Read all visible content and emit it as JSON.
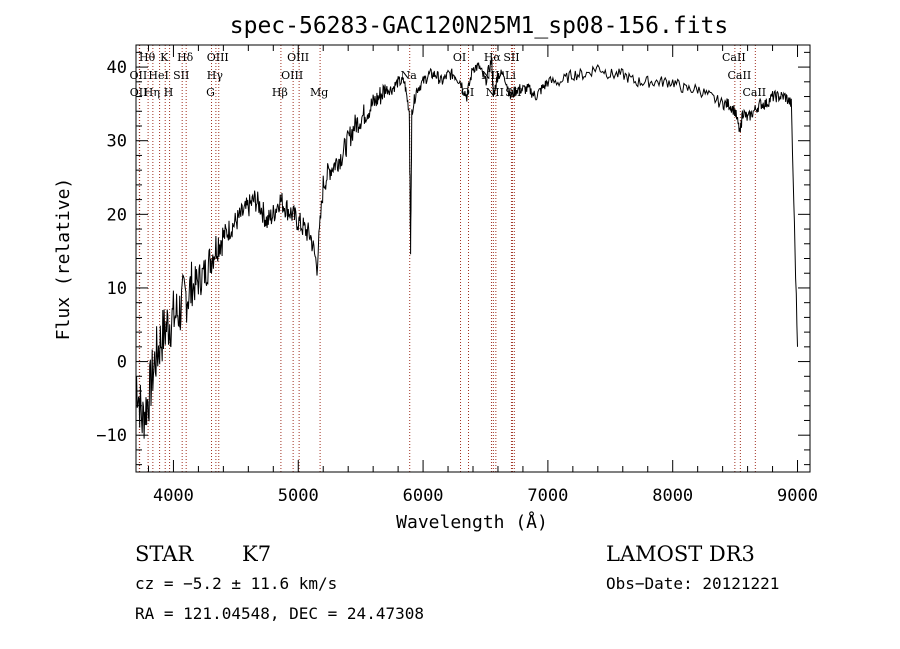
{
  "chart_data": {
    "type": "line",
    "title": "spec-56283-GAC120N25M1_sp08-156.fits",
    "xlabel": "Wavelength (Å)",
    "ylabel": "Flux (relative)",
    "xlim": [
      3700,
      9100
    ],
    "ylim": [
      -15,
      43
    ],
    "xticks": [
      4000,
      5000,
      6000,
      7000,
      8000,
      9000
    ],
    "yticks": [
      -10,
      0,
      10,
      20,
      30,
      40
    ],
    "series": [
      {
        "name": "flux",
        "x": [
          3700,
          3750,
          3800,
          3850,
          3900,
          3950,
          4000,
          4050,
          4100,
          4150,
          4200,
          4250,
          4300,
          4350,
          4400,
          4450,
          4500,
          4550,
          4600,
          4650,
          4700,
          4750,
          4800,
          4850,
          4900,
          4950,
          5000,
          5050,
          5100,
          5150,
          5200,
          5250,
          5300,
          5350,
          5400,
          5450,
          5500,
          5550,
          5600,
          5650,
          5700,
          5750,
          5800,
          5850,
          5890,
          5900,
          5910,
          5950,
          6000,
          6050,
          6100,
          6150,
          6200,
          6250,
          6300,
          6350,
          6400,
          6450,
          6500,
          6550,
          6563,
          6600,
          6650,
          6700,
          6750,
          6800,
          6850,
          6900,
          6950,
          7000,
          7100,
          7200,
          7300,
          7400,
          7500,
          7600,
          7700,
          7800,
          7900,
          8000,
          8100,
          8200,
          8300,
          8400,
          8450,
          8500,
          8540,
          8560,
          8600,
          8650,
          8700,
          8750,
          8800,
          8850,
          8900,
          8950,
          9000
        ],
        "y": [
          -2,
          -8,
          -5,
          0,
          3,
          5,
          6,
          7,
          9,
          10,
          11,
          12,
          14,
          16,
          17,
          18,
          19,
          20,
          21,
          22,
          21,
          19,
          20,
          22,
          21,
          20,
          19,
          18,
          17,
          13,
          24,
          26,
          27,
          28,
          30,
          32,
          33,
          34,
          35,
          36,
          37,
          37,
          38,
          38,
          34,
          15,
          34,
          37,
          38,
          39,
          39,
          38,
          39,
          39,
          38,
          36,
          40,
          40,
          38,
          41,
          36,
          39,
          39,
          36,
          37,
          37,
          37,
          36,
          37,
          38,
          38,
          39,
          39,
          40,
          39,
          39,
          38,
          38,
          38,
          38,
          37,
          37,
          36,
          35,
          35,
          34,
          31,
          34,
          33,
          34,
          35,
          35,
          36,
          36,
          36,
          35,
          2
        ]
      }
    ],
    "lines": [
      {
        "label": "Hθ",
        "wave": 3797,
        "row": 1
      },
      {
        "label": "OII",
        "wave": 3727,
        "row": 2
      },
      {
        "label": "OII",
        "wave": 3729,
        "row": 3
      },
      {
        "label": "Hη",
        "wave": 3835,
        "row": 3
      },
      {
        "label": "K",
        "wave": 3934,
        "row": 1
      },
      {
        "label": "HeI",
        "wave": 3889,
        "row": 2
      },
      {
        "label": "SII",
        "wave": 4070,
        "row": 2
      },
      {
        "label": "H",
        "wave": 3969,
        "row": 3
      },
      {
        "label": "Hδ",
        "wave": 4102,
        "row": 1
      },
      {
        "label": "OIII",
        "wave": 4363,
        "row": 1
      },
      {
        "label": "Hγ",
        "wave": 4340,
        "row": 2
      },
      {
        "label": "G",
        "wave": 4305,
        "row": 3
      },
      {
        "label": "Hβ",
        "wave": 4861,
        "row": 3
      },
      {
        "label": "OIII",
        "wave": 4959,
        "row": 2
      },
      {
        "label": "OIII",
        "wave": 5007,
        "row": 1
      },
      {
        "label": "Mg",
        "wave": 5175,
        "row": 3
      },
      {
        "label": "Na",
        "wave": 5893,
        "row": 2
      },
      {
        "label": "OI",
        "wave": 6300,
        "row": 1
      },
      {
        "label": "OI",
        "wave": 6364,
        "row": 3
      },
      {
        "label": "NII",
        "wave": 6548,
        "row": 2
      },
      {
        "label": "Hα",
        "wave": 6563,
        "row": 1
      },
      {
        "label": "NII",
        "wave": 6583,
        "row": 3
      },
      {
        "label": "SII",
        "wave": 6716,
        "row": 1
      },
      {
        "label": "Li",
        "wave": 6708,
        "row": 2
      },
      {
        "label": "SII",
        "wave": 6731,
        "row": 3
      },
      {
        "label": "CaII",
        "wave": 8498,
        "row": 1
      },
      {
        "label": "CaII",
        "wave": 8542,
        "row": 2
      },
      {
        "label": "CaII",
        "wave": 8662,
        "row": 3
      }
    ]
  },
  "info": {
    "object_type": "STAR",
    "subclass": "K7",
    "cz": "cz = −5.2 ± 11.6 km/s",
    "coords": "RA = 121.04548, DEC =  24.47308",
    "survey": "LAMOST DR3",
    "obs_date": "Obs−Date: 20121221"
  },
  "colors": {
    "axis": "#000000",
    "line_marker": "#a03020",
    "spectrum": "#000000"
  }
}
